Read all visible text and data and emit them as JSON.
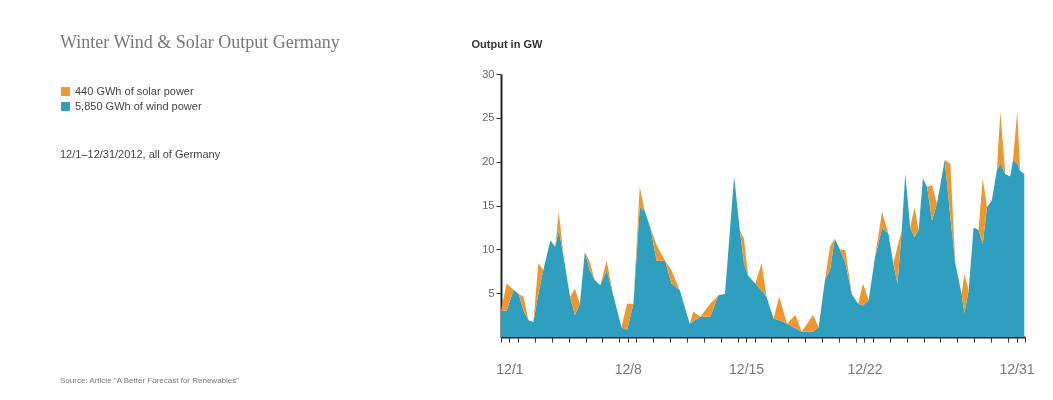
{
  "chart_data": {
    "type": "area",
    "stacked": true,
    "title": "Winter Wind & Solar Output Germany",
    "subtitle": "12/1–12/31/2012, all of Germany",
    "ylabel": "Output in GW",
    "annotations": [
      "Source: Article \"A Better Forecast for Renewables\""
    ],
    "x": [
      "2012-12-01T00:00",
      "2012-12-01T08:00",
      "2012-12-01T18:00",
      "2012-12-02T01:00",
      "2012-12-02T08:00",
      "2012-12-02T15:00",
      "2012-12-02T22:00",
      "2012-12-03T05:00",
      "2012-12-03T12:00",
      "2012-12-03T22:00",
      "2012-12-04T05:00",
      "2012-12-04T10:00",
      "2012-12-04T17:00",
      "2012-12-05T02:00",
      "2012-12-05T09:00",
      "2012-12-05T16:00",
      "2012-12-05T23:00",
      "2012-12-06T06:00",
      "2012-12-06T13:00",
      "2012-12-06T21:00",
      "2012-12-07T06:00",
      "2012-12-07T16:00",
      "2012-12-08T03:00",
      "2012-12-08T11:00",
      "2012-12-08T20:00",
      "2012-12-09T05:00",
      "2012-12-09T12:00",
      "2012-12-09T20:00",
      "2012-12-10T05:00",
      "2012-12-10T17:00",
      "2012-12-11T02:00",
      "2012-12-11T14:00",
      "2012-12-12T04:00",
      "2012-12-12T09:00",
      "2012-12-12T19:00",
      "2012-12-13T09:00",
      "2012-12-13T21:00",
      "2012-12-14T06:00",
      "2012-12-14T19:00",
      "2012-12-15T03:00",
      "2012-12-15T09:00",
      "2012-12-15T15:00",
      "2012-12-16T01:00",
      "2012-12-16T10:00",
      "2012-12-16T17:00",
      "2012-12-17T03:00",
      "2012-12-17T11:00",
      "2012-12-17T22:00",
      "2012-12-18T10:00",
      "2012-12-18T19:00",
      "2012-12-19T11:00",
      "2012-12-19T19:00",
      "2012-12-20T04:00",
      "2012-12-20T11:00",
      "2012-12-20T18:00",
      "2012-12-21T01:00",
      "2012-12-21T09:00",
      "2012-12-21T18:00",
      "2012-12-22T03:00",
      "2012-12-22T10:00",
      "2012-12-22T18:00",
      "2012-12-23T03:00",
      "2012-12-23T13:00",
      "2012-12-23T22:00",
      "2012-12-24T05:00",
      "2012-12-24T11:00",
      "2012-12-24T17:00",
      "2012-12-24T22:00",
      "2012-12-25T05:00",
      "2012-12-25T11:00",
      "2012-12-25T17:00",
      "2012-12-25T23:00",
      "2012-12-26T05:00",
      "2012-12-26T12:00",
      "2012-12-26T19:00",
      "2012-12-27T06:00",
      "2012-12-27T14:00",
      "2012-12-27T21:00",
      "2012-12-28T06:00",
      "2012-12-28T10:00",
      "2012-12-28T16:00",
      "2012-12-28T23:00",
      "2012-12-29T06:00",
      "2012-12-29T12:00",
      "2012-12-29T18:00",
      "2012-12-30T01:00",
      "2012-12-30T08:00",
      "2012-12-30T13:00",
      "2012-12-30T20:00",
      "2012-12-31T03:00",
      "2012-12-31T07:00",
      "2012-12-31T13:00",
      "2012-12-31T17:00",
      "2012-12-31T23:00"
    ],
    "series": [
      {
        "name": "5,850 GWh of wind power",
        "color": "#2e9fbf",
        "values": [
          3.0,
          3.0,
          5.4,
          4.9,
          3.0,
          1.9,
          1.7,
          4.9,
          7.6,
          11.0,
          10.3,
          12.2,
          9.1,
          4.6,
          2.5,
          3.8,
          9.7,
          7.6,
          6.5,
          5.9,
          7.6,
          4.6,
          1.1,
          0.8,
          3.8,
          14.8,
          14.4,
          12.5,
          8.7,
          8.7,
          6.1,
          5.3,
          1.5,
          1.8,
          2.3,
          2.3,
          4.8,
          4.9,
          18.3,
          12.2,
          8.4,
          7.0,
          6.1,
          5.3,
          4.6,
          2.1,
          1.9,
          1.5,
          1.0,
          0.6,
          0.6,
          1.1,
          6.5,
          7.6,
          11.2,
          10.0,
          8.4,
          4.9,
          3.8,
          3.6,
          4.2,
          9.1,
          12.4,
          11.8,
          8.4,
          6.1,
          12.2,
          18.6,
          12.5,
          11.4,
          12.2,
          18.1,
          17.1,
          13.3,
          15.2,
          20.2,
          13.7,
          8.4,
          4.9,
          2.7,
          5.3,
          12.5,
          12.2,
          10.6,
          14.8,
          15.6,
          19.0,
          19.8,
          18.6,
          18.3,
          20.2,
          19.8,
          19.0,
          18.6
        ]
      },
      {
        "name": "440 GWh of solar power",
        "color": "#f0962e",
        "values": [
          0,
          3.1,
          0,
          0,
          1.6,
          0,
          0,
          3.5,
          0,
          0,
          0,
          2.1,
          0,
          0,
          3.0,
          0,
          0,
          1.0,
          0,
          0,
          1.1,
          0,
          0,
          3.0,
          0,
          2.3,
          0,
          0,
          1.8,
          0,
          1.5,
          0,
          0,
          1.1,
          0,
          1.5,
          0,
          0,
          0,
          0,
          2.8,
          0,
          0,
          3.1,
          0,
          0,
          2.7,
          0,
          1.5,
          0,
          1.9,
          0,
          0,
          2.7,
          0,
          0,
          1.5,
          0,
          0,
          2.5,
          0,
          0,
          1.9,
          0,
          0,
          4.2,
          0,
          0,
          0,
          3.4,
          0,
          0,
          0,
          4.0,
          0,
          0,
          6.1,
          0,
          0,
          4.5,
          0,
          0,
          0,
          7.5,
          0,
          0,
          0,
          5.9,
          0,
          0,
          0,
          5.9,
          0,
          0
        ]
      }
    ],
    "xlim": [
      "2012-12-01T00:00",
      "2013-01-01T00:00"
    ],
    "xticks": [
      {
        "value": "2012-12-01T00:00",
        "label": null
      },
      {
        "value": "2012-12-01T12:00",
        "label": "12/1"
      },
      {
        "value": "2012-12-02T00:00",
        "label": null
      },
      {
        "value": "2012-12-03T00:00",
        "label": null
      },
      {
        "value": "2012-12-04T00:00",
        "label": null
      },
      {
        "value": "2012-12-05T00:00",
        "label": null
      },
      {
        "value": "2012-12-06T00:00",
        "label": null
      },
      {
        "value": "2012-12-07T00:00",
        "label": null
      },
      {
        "value": "2012-12-08T00:00",
        "label": null
      },
      {
        "value": "2012-12-08T12:00",
        "label": "12/8"
      },
      {
        "value": "2012-12-09T00:00",
        "label": null
      },
      {
        "value": "2012-12-10T00:00",
        "label": null
      },
      {
        "value": "2012-12-11T00:00",
        "label": null
      },
      {
        "value": "2012-12-12T00:00",
        "label": null
      },
      {
        "value": "2012-12-13T00:00",
        "label": null
      },
      {
        "value": "2012-12-14T00:00",
        "label": null
      },
      {
        "value": "2012-12-15T00:00",
        "label": null
      },
      {
        "value": "2012-12-15T12:00",
        "label": "12/15"
      },
      {
        "value": "2012-12-16T00:00",
        "label": null
      },
      {
        "value": "2012-12-17T00:00",
        "label": null
      },
      {
        "value": "2012-12-18T00:00",
        "label": null
      },
      {
        "value": "2012-12-19T00:00",
        "label": null
      },
      {
        "value": "2012-12-20T00:00",
        "label": null
      },
      {
        "value": "2012-12-21T00:00",
        "label": null
      },
      {
        "value": "2012-12-22T00:00",
        "label": null
      },
      {
        "value": "2012-12-22T12:00",
        "label": "12/22"
      },
      {
        "value": "2012-12-23T00:00",
        "label": null
      },
      {
        "value": "2012-12-24T00:00",
        "label": null
      },
      {
        "value": "2012-12-25T00:00",
        "label": null
      },
      {
        "value": "2012-12-26T00:00",
        "label": null
      },
      {
        "value": "2012-12-27T00:00",
        "label": null
      },
      {
        "value": "2012-12-28T00:00",
        "label": null
      },
      {
        "value": "2012-12-29T00:00",
        "label": null
      },
      {
        "value": "2012-12-30T00:00",
        "label": null
      },
      {
        "value": "2012-12-31T00:00",
        "label": null
      },
      {
        "value": "2012-12-31T12:00",
        "label": "12/31"
      },
      {
        "value": "2013-01-01T00:00",
        "label": null
      }
    ],
    "ylim": [
      0,
      30
    ],
    "yticks": [
      5,
      10,
      15,
      20,
      25,
      30
    ],
    "grid": false,
    "legend": "left"
  }
}
